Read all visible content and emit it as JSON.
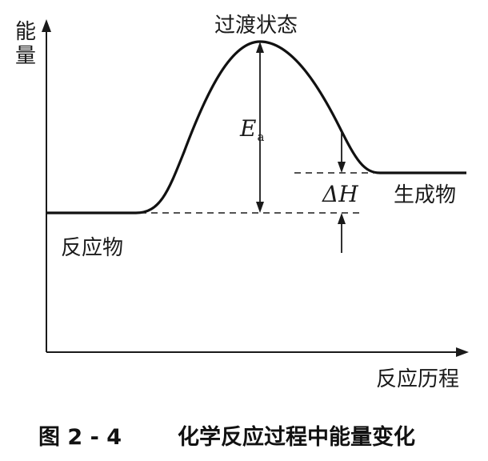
{
  "axes": {
    "y_label": "能量",
    "x_label": "反应历程"
  },
  "labels": {
    "transition_state": "过渡状态",
    "activation_energy": "E",
    "activation_energy_sub": "a",
    "enthalpy_change": "ΔH",
    "products": "生成物",
    "reactants": "反应物"
  },
  "caption": {
    "figure_number": "图 2 - 4",
    "title": "化学反应过程中能量变化"
  }
}
